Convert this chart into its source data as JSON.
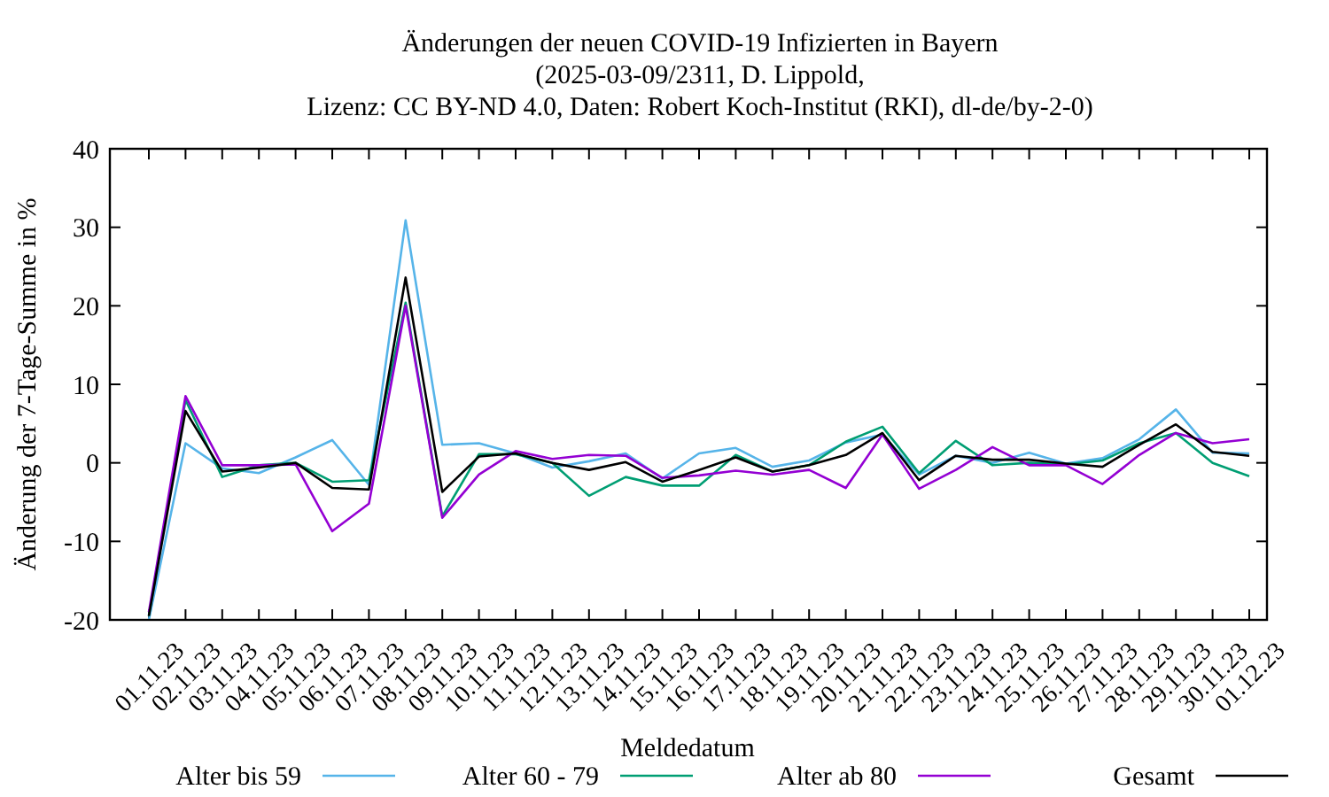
{
  "chart_data": {
    "type": "line",
    "title": "Änderungen der neuen COVID-19 Infizierten in Bayern",
    "subtitle": "(2025-03-09/2311, D. Lippold,\nLizenz: CC BY-ND 4.0, Daten: Robert Koch-Institut (RKI), dl-de/by-2-0)",
    "xlabel": "Meldedatum",
    "ylabel": "Änderung der 7-Tage-Summe in %",
    "categories": [
      "01.11.23",
      "02.11.23",
      "03.11.23",
      "04.11.23",
      "05.11.23",
      "06.11.23",
      "07.11.23",
      "08.11.23",
      "09.11.23",
      "10.11.23",
      "11.11.23",
      "12.11.23",
      "13.11.23",
      "14.11.23",
      "15.11.23",
      "16.11.23",
      "17.11.23",
      "18.11.23",
      "19.11.23",
      "20.11.23",
      "21.11.23",
      "22.11.23",
      "23.11.23",
      "24.11.23",
      "25.11.23",
      "26.11.23",
      "27.11.23",
      "28.11.23",
      "29.11.23",
      "30.11.23",
      "01.12.23"
    ],
    "ylim": [
      -20,
      40
    ],
    "yticks": [
      -20,
      -10,
      0,
      10,
      20,
      30,
      40
    ],
    "grid": false,
    "legend": "bottom",
    "marker": "none",
    "line_style": "solid",
    "series": [
      {
        "name": "Alter bis 59",
        "color": "#56b4e9",
        "values": [
          -20,
          2.5,
          -0.7,
          -1.3,
          0.7,
          2.9,
          -2.8,
          30.9,
          2.3,
          2.5,
          1.2,
          -0.6,
          0.2,
          1.2,
          -2.0,
          1.2,
          1.9,
          -0.5,
          0.3,
          2.6,
          3.6,
          -1.5,
          0.9,
          0,
          1.3,
          -0.1,
          0.6,
          3.0,
          6.8,
          1.3,
          1.2
        ]
      },
      {
        "name": "Alter 60 - 79",
        "color": "#009e73",
        "values": [
          -19.5,
          8.0,
          -1.8,
          -0.3,
          0,
          -2.4,
          -2.2,
          20.4,
          -6.8,
          1.1,
          1.1,
          0,
          -4.2,
          -1.8,
          -2.9,
          -2.9,
          1.0,
          -1.1,
          -0.3,
          2.7,
          4.6,
          -1.3,
          2.8,
          -0.3,
          0,
          -0.2,
          0.3,
          2.5,
          3.8,
          0,
          -1.7
        ]
      },
      {
        "name": "Alter ab 80",
        "color": "#9400d3",
        "values": [
          -19,
          8.5,
          -0.3,
          -0.3,
          -0.2,
          -8.7,
          -5.2,
          20,
          -7.0,
          -1.5,
          1.5,
          0.5,
          1.0,
          0.9,
          -1.9,
          -1.6,
          -1.0,
          -1.5,
          -0.9,
          -3.2,
          3.6,
          -3.3,
          -0.9,
          2.0,
          -0.3,
          -0.3,
          -2.7,
          1.0,
          3.8,
          2.5,
          3.0
        ]
      },
      {
        "name": "Gesamt",
        "color": "#000000",
        "values": [
          -19.5,
          6.6,
          -1.1,
          -0.6,
          0,
          -3.2,
          -3.4,
          23.6,
          -3.7,
          0.8,
          1.2,
          0,
          -0.9,
          0.1,
          -2.4,
          -0.9,
          0.7,
          -1.1,
          -0.3,
          1.0,
          3.8,
          -2.2,
          0.9,
          0.4,
          0.4,
          -0.1,
          -0.5,
          2.3,
          4.9,
          1.4,
          0.9
        ]
      }
    ]
  }
}
